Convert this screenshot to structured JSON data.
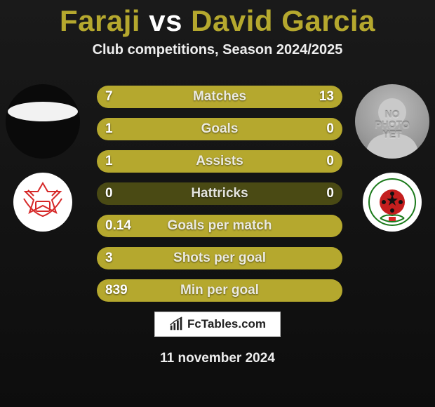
{
  "header": {
    "player1": "Faraji",
    "vs": "vs",
    "player2": "David Garcia",
    "subtitle": "Club competitions, Season 2024/2025"
  },
  "colors": {
    "accent": "#b5a82e",
    "bar_bg": "#4a4a14",
    "bg_top": "#1a1a1a",
    "bg_bottom": "#0d0d0d"
  },
  "avatars": {
    "left_has_photo": false,
    "right_has_photo": false,
    "nophoto_text": "NO\nPHOTO\nYET"
  },
  "stats": {
    "rows": [
      {
        "label": "Matches",
        "left": "7",
        "right": "13",
        "barL_pct": 35,
        "barR_pct": 65
      },
      {
        "label": "Goals",
        "left": "1",
        "right": "0",
        "barL_pct": 100,
        "barR_pct": 0
      },
      {
        "label": "Assists",
        "left": "1",
        "right": "0",
        "barL_pct": 100,
        "barR_pct": 0
      },
      {
        "label": "Hattricks",
        "left": "0",
        "right": "0",
        "barL_pct": 0,
        "barR_pct": 0
      },
      {
        "label": "Goals per match",
        "left": "0.14",
        "right": "",
        "barL_pct": 100,
        "barR_pct": 0
      },
      {
        "label": "Shots per goal",
        "left": "3",
        "right": "",
        "barL_pct": 100,
        "barR_pct": 0
      },
      {
        "label": "Min per goal",
        "left": "839",
        "right": "",
        "barL_pct": 100,
        "barR_pct": 0
      }
    ]
  },
  "footer": {
    "site": "FcTables.com",
    "date": "11 november 2024"
  }
}
